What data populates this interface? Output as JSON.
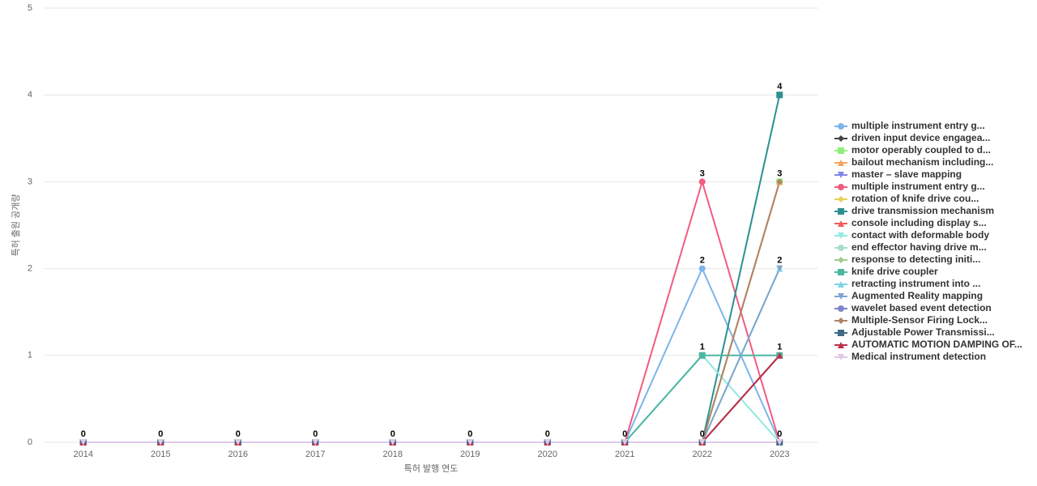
{
  "chart_data": {
    "type": "line",
    "x_label": "특허 발행 연도",
    "y_label": "특허 출원 공개량",
    "categories": [
      "2014",
      "2015",
      "2016",
      "2017",
      "2018",
      "2019",
      "2020",
      "2021",
      "2022",
      "2023"
    ],
    "ylim": [
      0,
      5
    ],
    "yticks": [
      0,
      1,
      2,
      3,
      4,
      5
    ],
    "grid": true,
    "legend": "right",
    "series": [
      {
        "name": "multiple instrument entry g...",
        "color": "#7cb5ec",
        "values": [
          0,
          0,
          0,
          0,
          0,
          0,
          0,
          0,
          2,
          0
        ]
      },
      {
        "name": "driven input device engagea...",
        "color": "#434348",
        "values": [
          0,
          0,
          0,
          0,
          0,
          0,
          0,
          0,
          0,
          1
        ]
      },
      {
        "name": "motor operably coupled to d...",
        "color": "#90ed7d",
        "values": [
          0,
          0,
          0,
          0,
          0,
          0,
          0,
          0,
          0,
          3
        ]
      },
      {
        "name": "bailout mechanism including...",
        "color": "#f7a35c",
        "values": [
          0,
          0,
          0,
          0,
          0,
          0,
          0,
          0,
          0,
          3
        ]
      },
      {
        "name": "master – slave mapping",
        "color": "#8085e9",
        "values": [
          0,
          0,
          0,
          0,
          0,
          0,
          0,
          0,
          0,
          0
        ]
      },
      {
        "name": "multiple instrument entry g...",
        "color": "#f15c80",
        "values": [
          0,
          0,
          0,
          0,
          0,
          0,
          0,
          0,
          3,
          0
        ]
      },
      {
        "name": "rotation of knife drive cou...",
        "color": "#e4d354",
        "values": [
          0,
          0,
          0,
          0,
          0,
          0,
          0,
          0,
          0,
          0
        ]
      },
      {
        "name": "drive transmission mechanism",
        "color": "#2b908f",
        "values": [
          0,
          0,
          0,
          0,
          0,
          0,
          0,
          0,
          0,
          4
        ]
      },
      {
        "name": "console including display s...",
        "color": "#f45b5b",
        "values": [
          0,
          0,
          0,
          0,
          0,
          0,
          0,
          0,
          0,
          0
        ]
      },
      {
        "name": "contact with deformable body",
        "color": "#91e8e1",
        "values": [
          0,
          0,
          0,
          0,
          0,
          0,
          0,
          0,
          1,
          0
        ]
      },
      {
        "name": "end effector having drive m...",
        "color": "#a8dcd1",
        "values": [
          0,
          0,
          0,
          0,
          0,
          0,
          0,
          0,
          0,
          0
        ]
      },
      {
        "name": "response to detecting initi...",
        "color": "#9ccc8c",
        "values": [
          0,
          0,
          0,
          0,
          0,
          0,
          0,
          0,
          0,
          0
        ]
      },
      {
        "name": "knife drive coupler",
        "color": "#4db6a0",
        "values": [
          0,
          0,
          0,
          0,
          0,
          0,
          0,
          0,
          1,
          1
        ]
      },
      {
        "name": "retracting instrument into ...",
        "color": "#7dd3e8",
        "values": [
          0,
          0,
          0,
          0,
          0,
          0,
          0,
          0,
          0,
          2
        ]
      },
      {
        "name": "Augmented Reality mapping",
        "color": "#7ea6cc",
        "values": [
          0,
          0,
          0,
          0,
          0,
          0,
          0,
          0,
          0,
          2
        ]
      },
      {
        "name": "wavelet based event detection",
        "color": "#7d87c9",
        "values": [
          0,
          0,
          0,
          0,
          0,
          0,
          0,
          0,
          0,
          0
        ]
      },
      {
        "name": "Multiple-Sensor Firing Lock...",
        "color": "#b0836a",
        "values": [
          0,
          0,
          0,
          0,
          0,
          0,
          0,
          0,
          0,
          3
        ]
      },
      {
        "name": "Adjustable Power Transmissi...",
        "color": "#3f6a8a",
        "values": [
          0,
          0,
          0,
          0,
          0,
          0,
          0,
          0,
          0,
          0
        ]
      },
      {
        "name": "AUTOMATIC MOTION DAMPING OF...",
        "color": "#c0304a",
        "values": [
          0,
          0,
          0,
          0,
          0,
          0,
          0,
          0,
          0,
          1
        ]
      },
      {
        "name": "Medical instrument detection",
        "color": "#e0c8e8",
        "values": [
          0,
          0,
          0,
          0,
          0,
          0,
          0,
          0,
          0,
          0
        ]
      }
    ]
  }
}
